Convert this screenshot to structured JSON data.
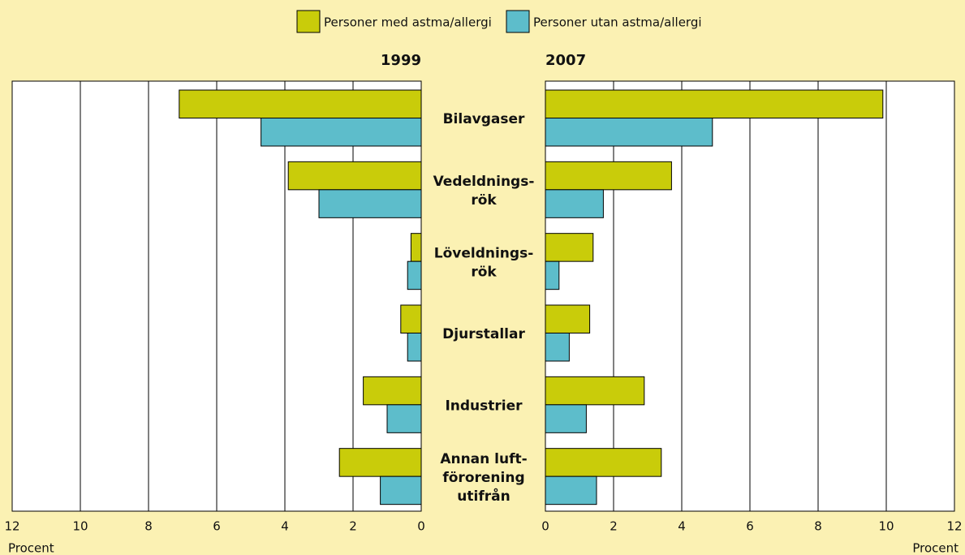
{
  "chart_data": {
    "type": "bar",
    "orientation": "horizontal",
    "categories": [
      [
        "Bilavgaser"
      ],
      [
        "Vedeldnings-",
        "rök"
      ],
      [
        "Löveldnings-",
        "rök"
      ],
      [
        "Djurstallar"
      ],
      [
        "Industrier"
      ],
      [
        "Annan luft-",
        "förorening",
        "utifrån"
      ]
    ],
    "series": [
      {
        "name": "Personer med astma/allergi",
        "color": "#c9cc0a"
      },
      {
        "name": "Personer utan astma/allergi",
        "color": "#5dbdcb"
      }
    ],
    "panels": [
      {
        "title": "1999",
        "direction": "left",
        "xlabel": "Procent",
        "xlim": [
          0,
          12
        ],
        "xticks": [
          0,
          2,
          4,
          6,
          8,
          10,
          12
        ],
        "grid": true,
        "values": [
          [
            7.1,
            3.9,
            0.3,
            0.6,
            1.7,
            2.4
          ],
          [
            4.7,
            3.0,
            0.4,
            0.4,
            1.0,
            1.2
          ]
        ]
      },
      {
        "title": "2007",
        "direction": "right",
        "xlabel": "Procent",
        "xlim": [
          0,
          12
        ],
        "xticks": [
          0,
          2,
          4,
          6,
          8,
          10,
          12
        ],
        "grid": true,
        "values": [
          [
            9.9,
            3.7,
            1.4,
            1.3,
            2.9,
            3.4
          ],
          [
            4.9,
            1.7,
            0.4,
            0.7,
            1.2,
            1.5
          ]
        ]
      }
    ]
  }
}
